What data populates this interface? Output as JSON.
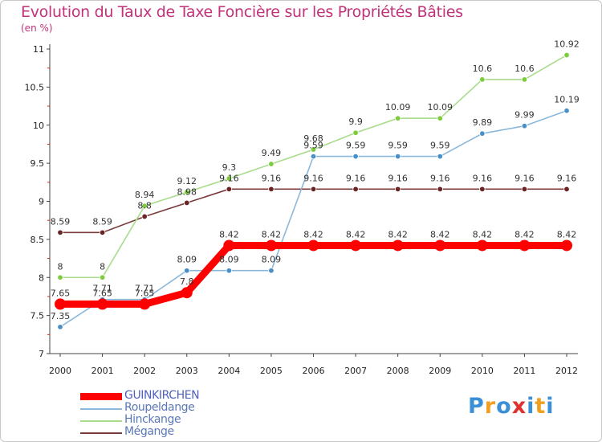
{
  "header": {
    "title": "Evolution du Taux de Taxe Foncière sur les Propriétés Bâties",
    "subtitle": "(en %)"
  },
  "logo": {
    "text": "Proxiti",
    "letters": [
      "P",
      "r",
      "o",
      "x",
      "i",
      "t",
      "i"
    ],
    "colors": [
      "#3a8fd6",
      "#f0a020",
      "#3a8fd6",
      "#e03030",
      "#3a8fd6",
      "#f0a020",
      "#3a8fd6"
    ]
  },
  "chart_data": {
    "type": "line",
    "title": "Evolution du Taux de Taxe Foncière sur les Propriétés Bâties",
    "ylabel": "(en %)",
    "xlabel": "",
    "x": [
      "2000",
      "2001",
      "2002",
      "2003",
      "2004",
      "2005",
      "2006",
      "2007",
      "2008",
      "2009",
      "2010",
      "2011",
      "2012"
    ],
    "ylim": [
      7,
      11
    ],
    "yticks": [
      "7",
      "7.5",
      "8",
      "8.5",
      "9",
      "9.5",
      "10",
      "10.5",
      "11"
    ],
    "grid": false,
    "legend_placement": "bottom-left",
    "series": [
      {
        "name": "GUINKIRCHEN",
        "color": "#ff0000",
        "emphasis": true,
        "values": [
          7.65,
          7.65,
          7.65,
          7.8,
          8.42,
          8.42,
          8.42,
          8.42,
          8.42,
          8.42,
          8.42,
          8.42,
          8.42
        ],
        "labels": [
          "7.65",
          "7.65",
          "7.65",
          "7.8",
          "8.42",
          "8.42",
          "8.42",
          "8.42",
          "8.42",
          "8.42",
          "8.42",
          "8.42",
          "8.42"
        ]
      },
      {
        "name": "Roupeldange",
        "color": "#4a90c8",
        "line_color": "#8ab8dc",
        "values": [
          7.35,
          7.71,
          7.71,
          8.09,
          8.09,
          8.09,
          9.59,
          9.59,
          9.59,
          9.59,
          9.89,
          9.99,
          10.19
        ],
        "labels": [
          "7.35",
          "7.71",
          "7.71",
          "8.09",
          "8.09",
          "8.09",
          "9.59",
          "9.59",
          "9.59",
          "9.59",
          "9.89",
          "9.99",
          "10.19"
        ]
      },
      {
        "name": "Hinckange",
        "color": "#7ccc3c",
        "line_color": "#a8dc8c",
        "values": [
          8,
          8,
          8.94,
          9.12,
          9.3,
          9.49,
          9.68,
          9.9,
          10.09,
          10.09,
          10.6,
          10.6,
          10.92
        ],
        "labels": [
          "8",
          "8",
          "8.94",
          "9.12",
          "9.3",
          "9.49",
          "9.68",
          "9.9",
          "10.09",
          "10.09",
          "10.6",
          "10.6",
          "10.92"
        ]
      },
      {
        "name": "Mégange",
        "color": "#6a2424",
        "line_color": "#7a3a3a",
        "values": [
          8.59,
          8.59,
          8.8,
          8.98,
          9.16,
          9.16,
          9.16,
          9.16,
          9.16,
          9.16,
          9.16,
          9.16,
          9.16
        ],
        "labels": [
          "8.59",
          "8.59",
          "8.8",
          "8.98",
          "9.16",
          "9.16",
          "9.16",
          "9.16",
          "9.16",
          "9.16",
          "9.16",
          "9.16",
          "9.16"
        ]
      }
    ]
  }
}
